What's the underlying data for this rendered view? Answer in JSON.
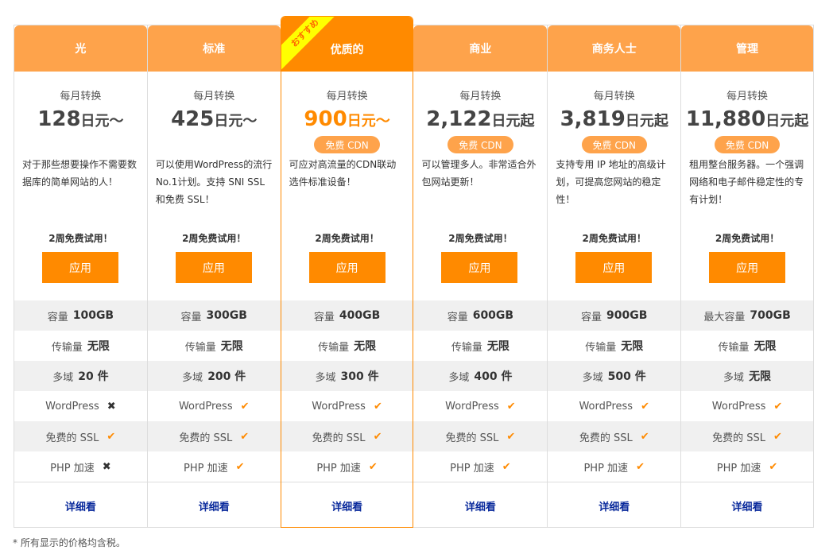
{
  "accent": "#ff8a00",
  "header_color": "#fea34b",
  "ribbon": "おすすめ",
  "monthly_label": "每月转换",
  "cdn_label": "免费 CDN",
  "trial_label": "2周免费试用！",
  "apply_label": "应用",
  "more_label": "详细看",
  "footnote": "* 所有显示的价格均含税。",
  "plans": [
    {
      "name": "光",
      "price": "128",
      "unit": "日元～",
      "cdn": false,
      "desc": "对于那些想要操作不需要数据库的简单网站的人！",
      "features": [
        [
          "容量",
          "100GB"
        ],
        [
          "传输量",
          "无限"
        ],
        [
          "多域",
          "20 件"
        ]
      ],
      "wordpress": false,
      "ssl": true,
      "php": false
    },
    {
      "name": "标准",
      "price": "425",
      "unit": "日元～",
      "cdn": false,
      "desc": "可以使用WordPress的流行No.1计划。支持 SNI SSL 和免费 SSL！",
      "features": [
        [
          "容量",
          "300GB"
        ],
        [
          "传输量",
          "无限"
        ],
        [
          "多域",
          "200 件"
        ]
      ],
      "wordpress": true,
      "ssl": true,
      "php": true
    },
    {
      "name": "优质的",
      "price": "900",
      "unit": "日元～",
      "cdn": true,
      "featured": true,
      "desc": "可应对高流量的CDN联动选件标准设备！",
      "features": [
        [
          "容量",
          "400GB"
        ],
        [
          "传输量",
          "无限"
        ],
        [
          "多域",
          "300 件"
        ]
      ],
      "wordpress": true,
      "ssl": true,
      "php": true
    },
    {
      "name": "商业",
      "price": "2,122",
      "unit": "日元起",
      "cdn": true,
      "desc": "可以管理多人。非常适合外包网站更新！",
      "features": [
        [
          "容量",
          "600GB"
        ],
        [
          "传输量",
          "无限"
        ],
        [
          "多域",
          "400 件"
        ]
      ],
      "wordpress": true,
      "ssl": true,
      "php": true
    },
    {
      "name": "商务人士",
      "price": "3,819",
      "unit": "日元起",
      "cdn": true,
      "desc": "支持专用 IP 地址的高级计划，可提高您网站的稳定性！",
      "features": [
        [
          "容量",
          "900GB"
        ],
        [
          "传输量",
          "无限"
        ],
        [
          "多域",
          "500 件"
        ]
      ],
      "wordpress": true,
      "ssl": true,
      "php": true
    },
    {
      "name": "管理",
      "price": "11,880",
      "unit": "日元起",
      "cdn": true,
      "desc": "租用整台服务器。一个强调网络和电子邮件稳定性的专有计划！",
      "features": [
        [
          "最大容量",
          "700GB"
        ],
        [
          "传输量",
          "无限"
        ],
        [
          "多域",
          "无限"
        ]
      ],
      "wordpress": true,
      "ssl": true,
      "php": true
    }
  ],
  "feature_labels": {
    "wordpress": "WordPress",
    "ssl": "免费的 SSL",
    "php": "PHP 加速"
  }
}
